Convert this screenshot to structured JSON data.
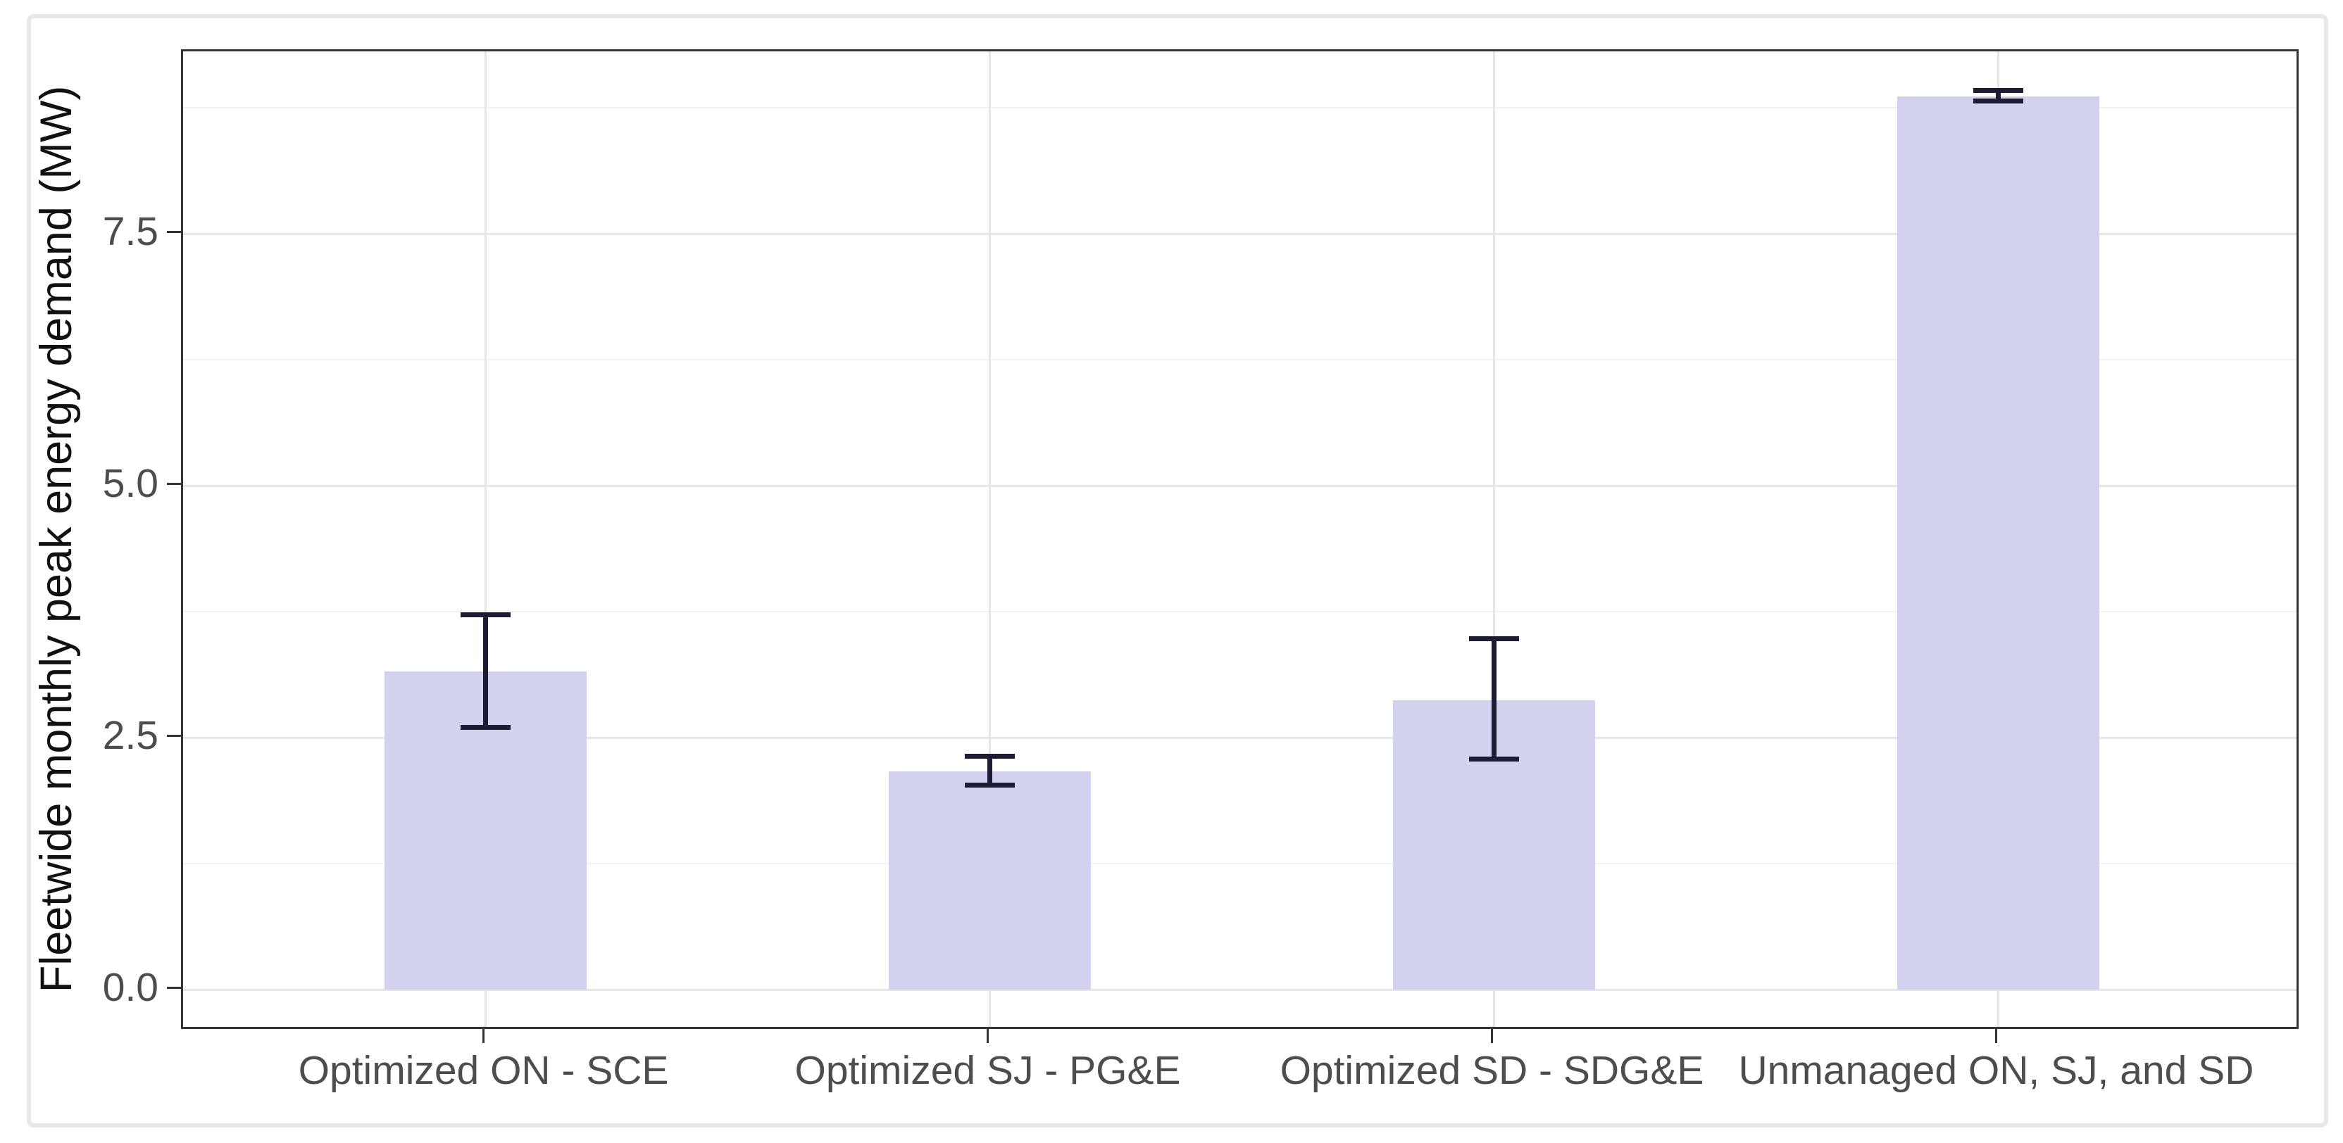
{
  "chart_data": {
    "type": "bar",
    "title": "",
    "xlabel": "",
    "ylabel": "Fleetwide monthly peak energy demand (MW)",
    "categories": [
      "Optimized ON - SCE",
      "Optimized SJ - PG&E",
      "Optimized SD - SDG&E",
      "Unmanaged ON, SJ, and SD"
    ],
    "values": [
      3.16,
      2.17,
      2.87,
      8.86
    ],
    "error_low": [
      2.6,
      2.03,
      2.29,
      8.82
    ],
    "error_high": [
      3.72,
      2.32,
      3.48,
      8.92
    ],
    "yticks": [
      0.0,
      2.5,
      5.0,
      7.5
    ],
    "ytick_labels": [
      "0.0",
      "2.5",
      "5.0",
      "7.5"
    ],
    "minor_yticks": [
      1.25,
      3.75,
      6.25,
      8.75
    ],
    "ylim": [
      -0.41,
      9.31
    ],
    "bar_width_frac": 0.4,
    "errorbar_cap_width_frac": 0.1,
    "grid": "horizontal major+minor, vertical major at category centers",
    "legend_position": "none",
    "colors": {
      "bar_fill": "#d3d2ee",
      "error_bar": "#1c1c33",
      "panel_border": "#333333",
      "axis_tick": "#333333",
      "grid_major": "#e6e6e6",
      "grid_minor": "#f2f2f2",
      "tick_label": "#4d4d4d",
      "axis_title": "#111111",
      "figure_border": "#e8e8e8",
      "background": "#ffffff"
    }
  }
}
